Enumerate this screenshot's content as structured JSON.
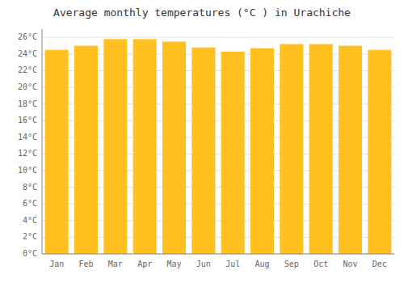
{
  "chart_data": {
    "type": "bar",
    "title": "Average monthly temperatures (°C ) in Urachiche",
    "categories": [
      "Jan",
      "Feb",
      "Mar",
      "Apr",
      "May",
      "Jun",
      "Jul",
      "Aug",
      "Sep",
      "Oct",
      "Nov",
      "Dec"
    ],
    "values": [
      24.5,
      25.0,
      25.8,
      25.8,
      25.5,
      24.8,
      24.3,
      24.7,
      25.2,
      25.2,
      25.0,
      24.5
    ],
    "color": "#FFC020",
    "ylim": [
      0,
      27
    ],
    "yticks": [
      {
        "value": 0,
        "label": "0°C"
      },
      {
        "value": 2,
        "label": "2°C"
      },
      {
        "value": 4,
        "label": "4°C"
      },
      {
        "value": 6,
        "label": "6°C"
      },
      {
        "value": 8,
        "label": "8°C"
      },
      {
        "value": 10,
        "label": "10°C"
      },
      {
        "value": 12,
        "label": "12°C"
      },
      {
        "value": 14,
        "label": "14°C"
      },
      {
        "value": 16,
        "label": "16°C"
      },
      {
        "value": 18,
        "label": "18°C"
      },
      {
        "value": 20,
        "label": "20°C"
      },
      {
        "value": 22,
        "label": "22°C"
      },
      {
        "value": 24,
        "label": "24°C"
      },
      {
        "value": 26,
        "label": "26°C"
      }
    ],
    "grid": true
  }
}
